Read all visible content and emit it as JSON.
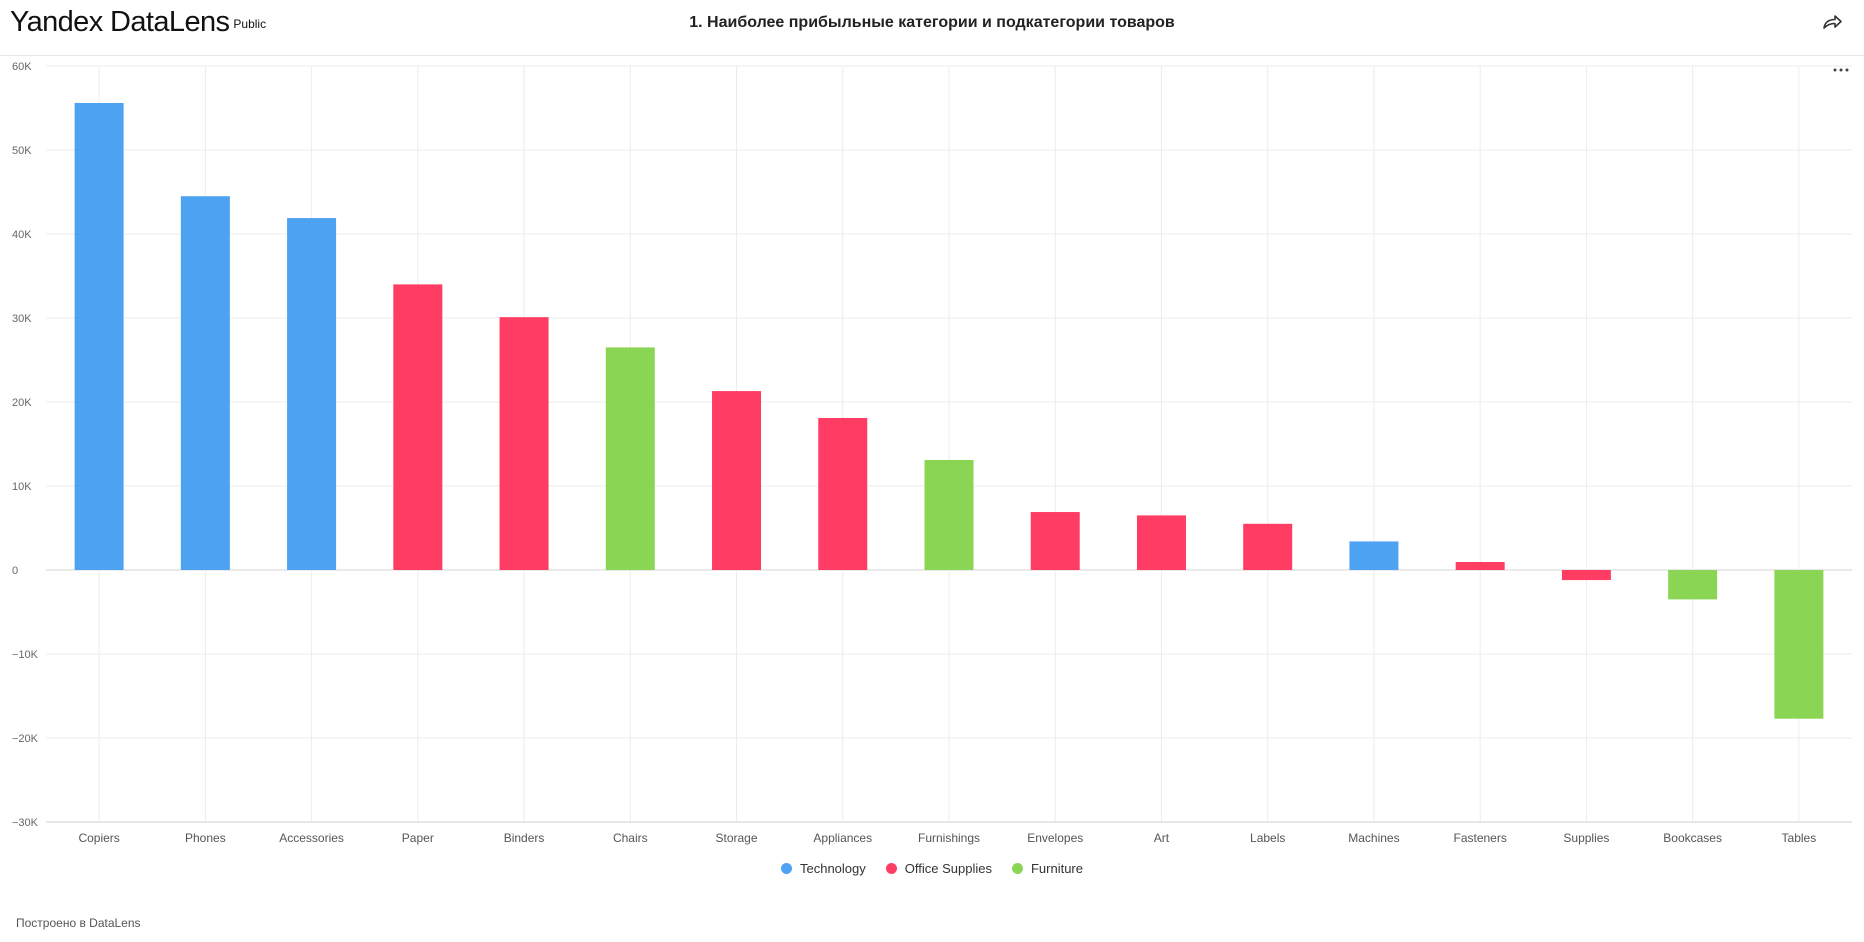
{
  "header": {
    "logo_text": "Yandex DataLens",
    "logo_badge": "Public",
    "title": "1. Наиболее прибыльные категории и подкатегории товаров",
    "share_icon": "share-icon",
    "more_icon": "more-dots-icon"
  },
  "footer": {
    "text": "Построено в DataLens"
  },
  "chart_data": {
    "type": "bar",
    "title": "",
    "xlabel": "",
    "ylabel": "",
    "ylim": [
      -30000,
      60000
    ],
    "yticks": [
      "60K",
      "50K",
      "40K",
      "30K",
      "20K",
      "10K",
      "0",
      "−10K",
      "−20K",
      "−30K"
    ],
    "grid": true,
    "legend_position": "bottom-center",
    "series": [
      {
        "name": "Technology",
        "color": "#4DA2F1"
      },
      {
        "name": "Office Supplies",
        "color": "#FF3D64"
      },
      {
        "name": "Furniture",
        "color": "#8AD554"
      }
    ],
    "categories": [
      "Copiers",
      "Phones",
      "Accessories",
      "Paper",
      "Binders",
      "Chairs",
      "Storage",
      "Appliances",
      "Furnishings",
      "Envelopes",
      "Art",
      "Labels",
      "Machines",
      "Fasteners",
      "Supplies",
      "Bookcases",
      "Tables"
    ],
    "values": [
      55600,
      44500,
      41900,
      34000,
      30100,
      26500,
      21300,
      18100,
      13100,
      6900,
      6500,
      5500,
      3400,
      950,
      -1200,
      -3500,
      -17700
    ],
    "category_series": [
      "Technology",
      "Technology",
      "Technology",
      "Office Supplies",
      "Office Supplies",
      "Furniture",
      "Office Supplies",
      "Office Supplies",
      "Furniture",
      "Office Supplies",
      "Office Supplies",
      "Office Supplies",
      "Technology",
      "Office Supplies",
      "Office Supplies",
      "Furniture",
      "Furniture"
    ]
  }
}
